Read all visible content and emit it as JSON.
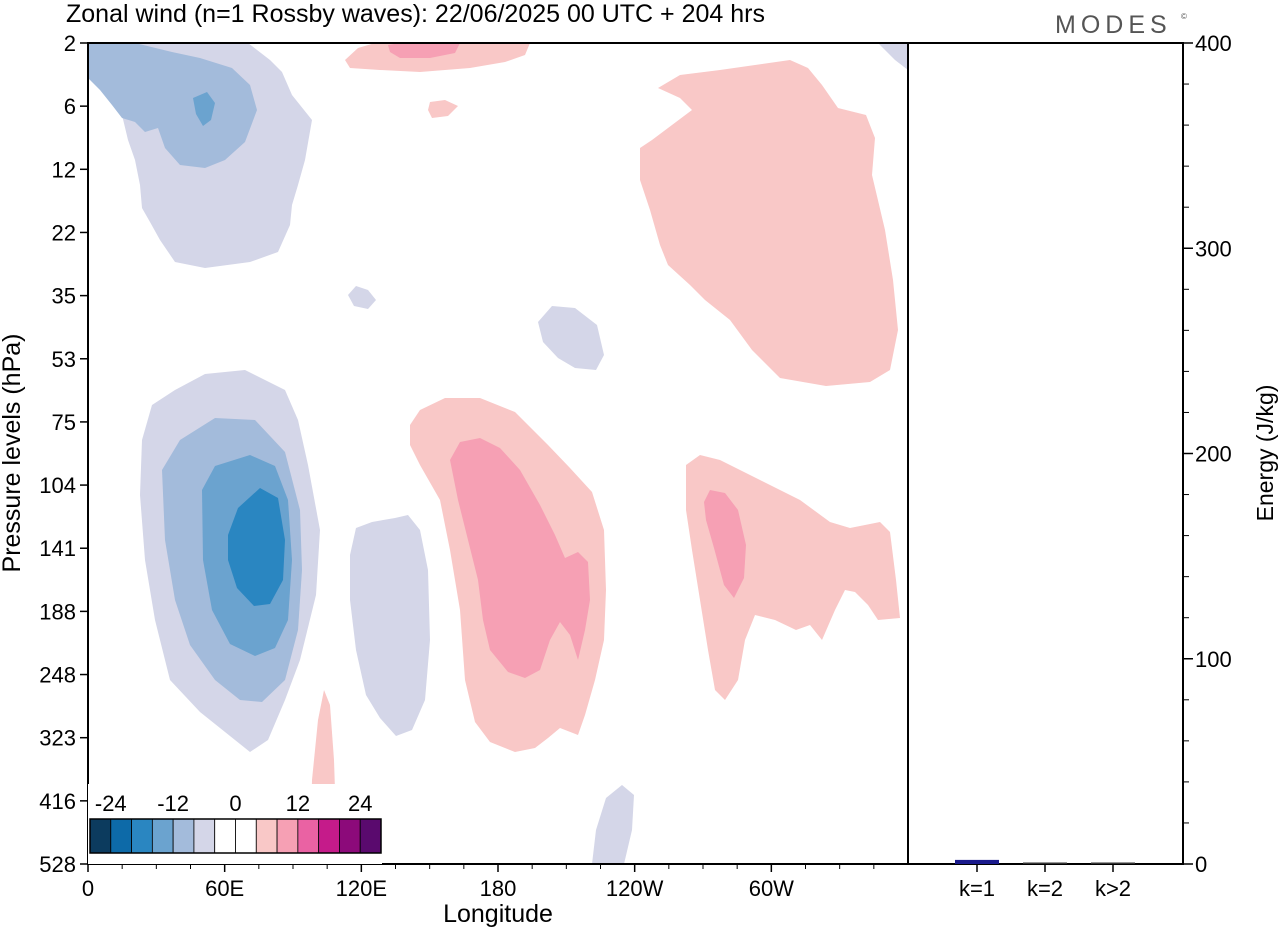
{
  "chart_data": {
    "type": "heatmap",
    "title": "Zonal wind (n=1 Rossby waves):  22/06/2025  00 UTC  + 204 hrs",
    "logo": "MODES",
    "logo_mark": "©",
    "xlabel": "Longitude",
    "ylabel": "Pressure levels (hPa)",
    "y2label": "Energy (J/kg)",
    "x_ticks": [
      {
        "lon": 0,
        "label": "0"
      },
      {
        "lon": 60,
        "label": "60E"
      },
      {
        "lon": 120,
        "label": "120E"
      },
      {
        "lon": 180,
        "label": "180"
      },
      {
        "lon": 240,
        "label": "120W"
      },
      {
        "lon": 300,
        "label": "60W"
      }
    ],
    "xlim": [
      0,
      360
    ],
    "y_levels": [
      "2",
      "6",
      "12",
      "22",
      "35",
      "53",
      "75",
      "104",
      "141",
      "188",
      "248",
      "323",
      "416",
      "528"
    ],
    "y2_ticks": [
      0,
      100,
      200,
      300,
      400
    ],
    "y2lim": [
      0,
      400
    ],
    "bar_categories": [
      "k=1",
      "k=2",
      "k>2"
    ],
    "bar_values": [
      2,
      0.5,
      0.5
    ],
    "bar_colors": [
      "#1a1a8c",
      "#333333",
      "#333333"
    ],
    "colorbar": {
      "labels": [
        "-24",
        "-12",
        "0",
        "12",
        "24"
      ],
      "colors": [
        "#0c3b5e",
        "#0d6aa8",
        "#2a86c1",
        "#6ba3cf",
        "#a3bbdb",
        "#d4d6e8",
        "#ffffff",
        "#ffffff",
        "#f9c8c7",
        "#f6a0b4",
        "#ea62a3",
        "#c51b8a",
        "#8c0a7a",
        "#5a0a6e"
      ]
    },
    "contour_colors": {
      "neg1": "#d4d6e8",
      "neg2": "#a3bbdb",
      "neg3": "#6ba3cf",
      "neg4": "#2a86c1",
      "pos1": "#f9c8c7",
      "pos2": "#f6a0b4"
    },
    "grid": false
  }
}
